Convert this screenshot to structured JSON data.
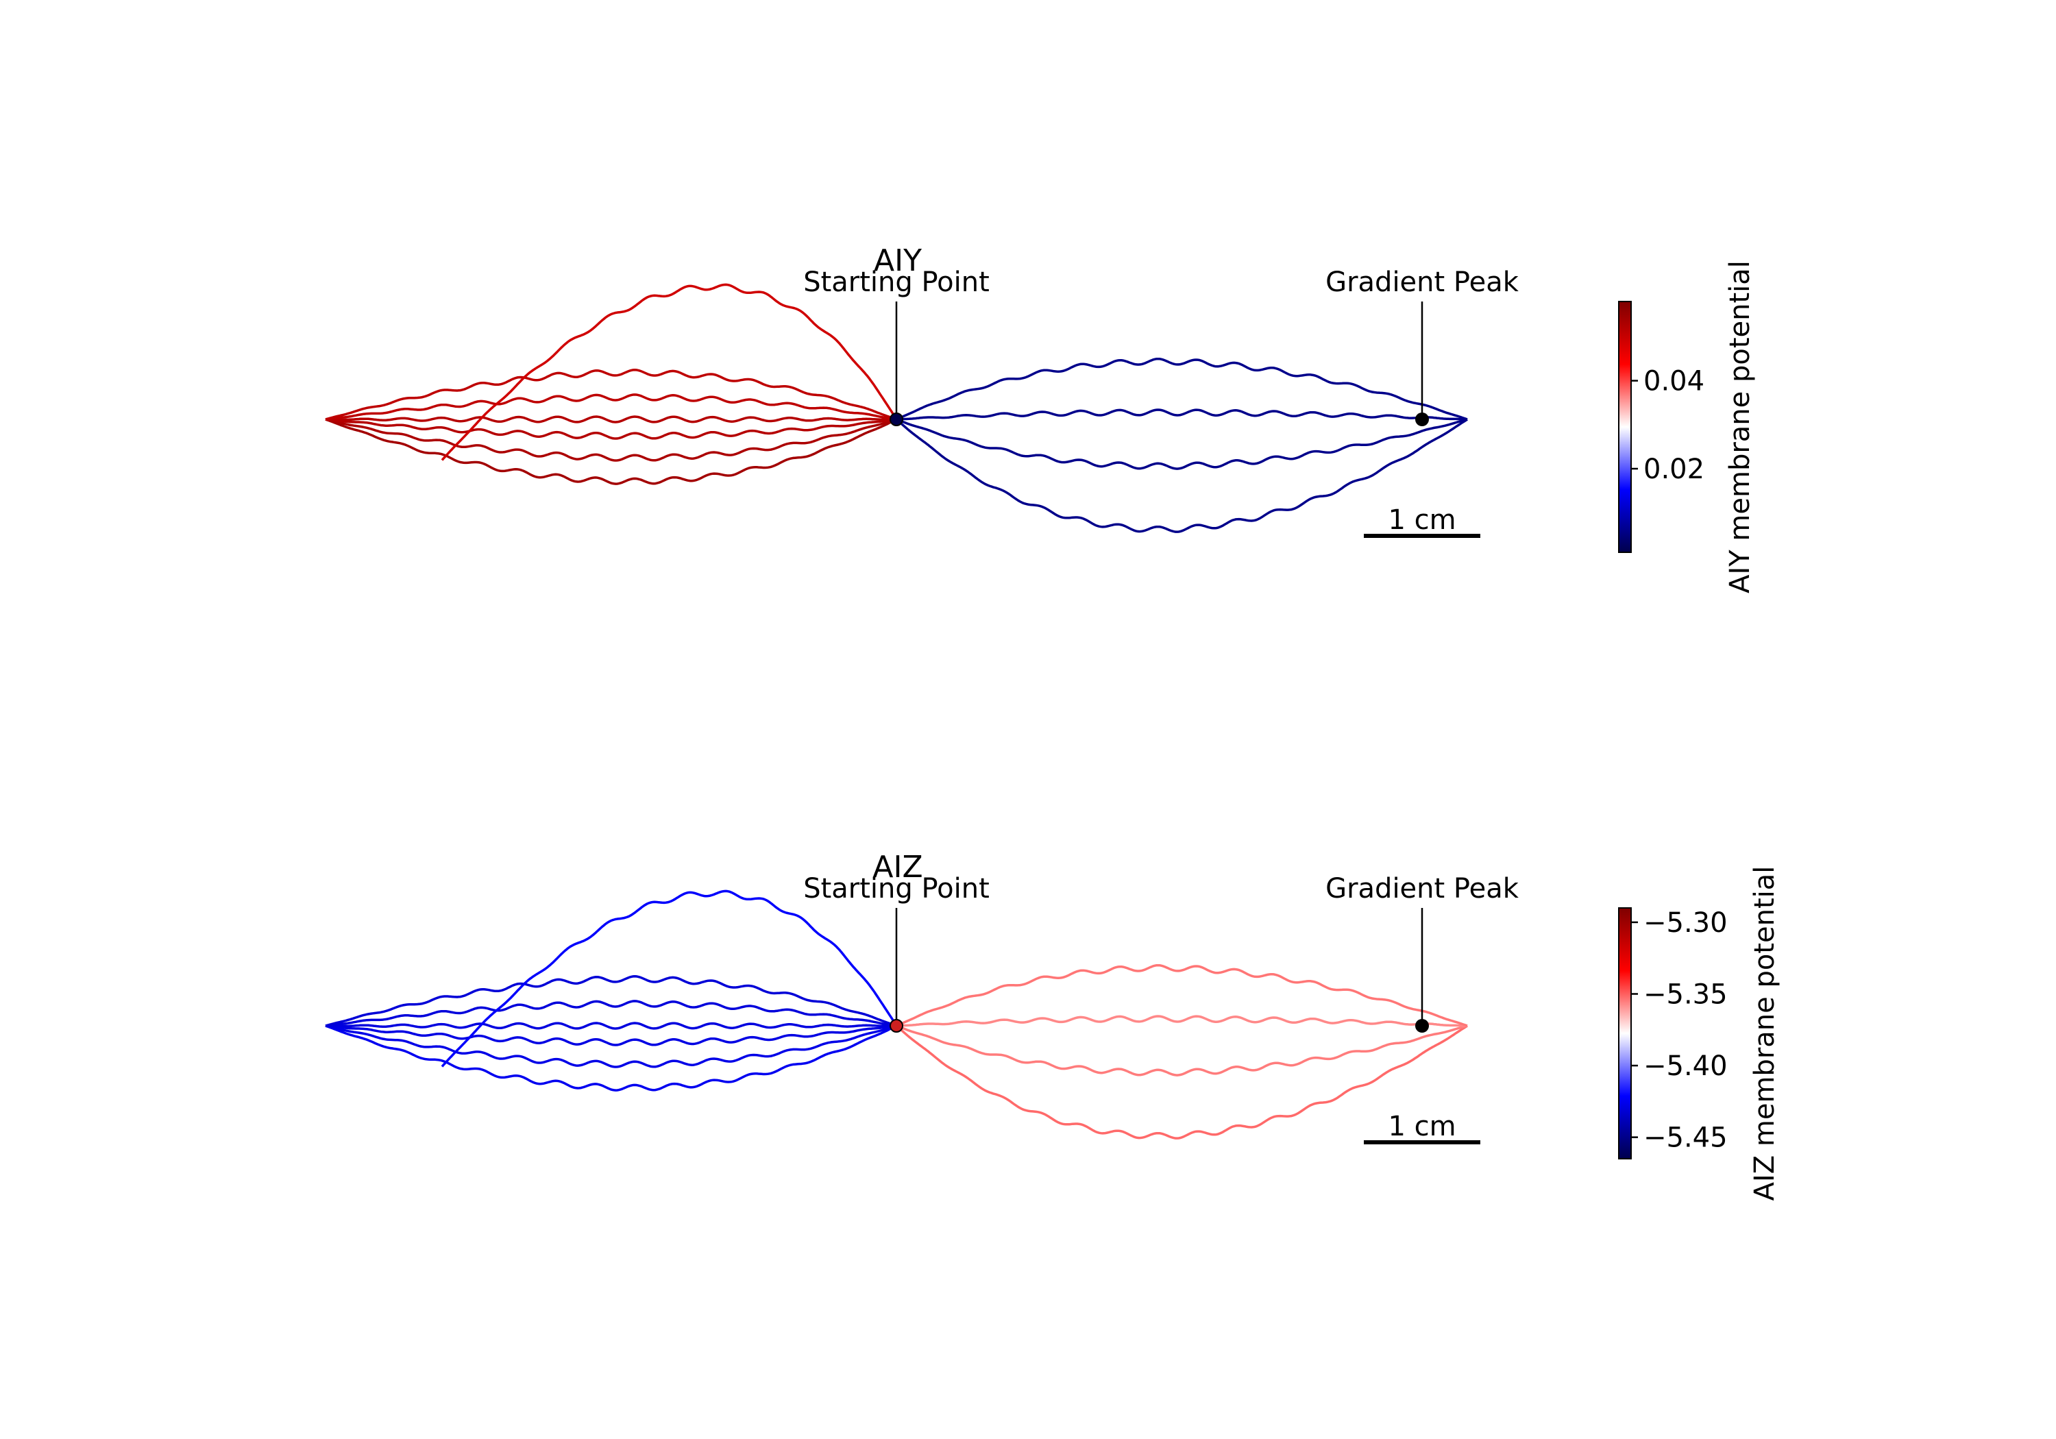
{
  "chart_data": [
    {
      "type": "line",
      "title": "AIY",
      "xlabel": "",
      "ylabel": "",
      "grid": false,
      "axes_visible": false,
      "annotations": [
        {
          "text": "Starting Point",
          "x": 0.0,
          "y": 0.0
        },
        {
          "text": "Gradient Peak",
          "x": 4.5,
          "y": 0.0
        }
      ],
      "scalebar": {
        "label": "1 cm",
        "length_cm": 1.0
      },
      "colormap": "seismic",
      "colorbar": {
        "label": "AIY membrane potential",
        "ticks": [
          0.02,
          0.04
        ],
        "tick_labels": [
          "0.02",
          "0.04"
        ],
        "range": [
          0.001,
          0.058
        ]
      },
      "series": [
        {
          "endpoint": [
            -4.9,
            0.0
          ],
          "bulge": 0.45,
          "value": 0.054
        },
        {
          "endpoint": [
            -4.9,
            0.0
          ],
          "bulge": 0.28,
          "value": 0.053
        },
        {
          "endpoint": [
            -4.9,
            0.0
          ],
          "bulge": 0.12,
          "value": 0.052
        },
        {
          "endpoint": [
            -4.9,
            0.0
          ],
          "bulge": 0.0,
          "value": 0.052
        },
        {
          "endpoint": [
            -4.9,
            0.0
          ],
          "bulge": -0.16,
          "value": 0.051
        },
        {
          "endpoint": [
            -4.9,
            0.0
          ],
          "bulge": -0.34,
          "value": 0.051
        },
        {
          "endpoint": [
            -3.9,
            -0.35
          ],
          "bulge": -1.1,
          "value": 0.049
        },
        {
          "endpoint": [
            4.9,
            0.0
          ],
          "bulge": 0.8,
          "value": 0.006
        },
        {
          "endpoint": [
            4.9,
            0.0
          ],
          "bulge": 0.34,
          "value": 0.006
        },
        {
          "endpoint": [
            4.9,
            0.0
          ],
          "bulge": -0.05,
          "value": 0.006
        },
        {
          "endpoint": [
            4.9,
            0.0
          ],
          "bulge": -0.42,
          "value": 0.006
        }
      ]
    },
    {
      "type": "line",
      "title": "AIZ",
      "xlabel": "",
      "ylabel": "",
      "grid": false,
      "axes_visible": false,
      "annotations": [
        {
          "text": "Starting Point",
          "x": 0.0,
          "y": 0.0
        },
        {
          "text": "Gradient Peak",
          "x": 4.5,
          "y": 0.0
        }
      ],
      "scalebar": {
        "label": "1 cm",
        "length_cm": 1.0
      },
      "colormap": "seismic",
      "colorbar": {
        "label": "AIZ membrane potential",
        "ticks": [
          -5.3,
          -5.35,
          -5.4,
          -5.45
        ],
        "tick_labels": [
          "−5.30",
          "−5.35",
          "−5.40",
          "−5.45"
        ],
        "range": [
          -5.465,
          -5.29
        ]
      },
      "series": [
        {
          "endpoint": [
            -4.9,
            0.0
          ],
          "bulge": 0.45,
          "value": -5.425
        },
        {
          "endpoint": [
            -4.9,
            0.0
          ],
          "bulge": 0.28,
          "value": -5.427
        },
        {
          "endpoint": [
            -4.9,
            0.0
          ],
          "bulge": 0.12,
          "value": -5.428
        },
        {
          "endpoint": [
            -4.9,
            0.0
          ],
          "bulge": 0.0,
          "value": -5.429
        },
        {
          "endpoint": [
            -4.9,
            0.0
          ],
          "bulge": -0.16,
          "value": -5.43
        },
        {
          "endpoint": [
            -4.9,
            0.0
          ],
          "bulge": -0.34,
          "value": -5.431
        },
        {
          "endpoint": [
            -3.9,
            -0.35
          ],
          "bulge": -1.1,
          "value": -5.422
        },
        {
          "endpoint": [
            4.9,
            0.0
          ],
          "bulge": 0.8,
          "value": -5.352
        },
        {
          "endpoint": [
            4.9,
            0.0
          ],
          "bulge": 0.34,
          "value": -5.355
        },
        {
          "endpoint": [
            4.9,
            0.0
          ],
          "bulge": -0.05,
          "value": -5.357
        },
        {
          "endpoint": [
            4.9,
            0.0
          ],
          "bulge": -0.42,
          "value": -5.354
        }
      ]
    }
  ]
}
